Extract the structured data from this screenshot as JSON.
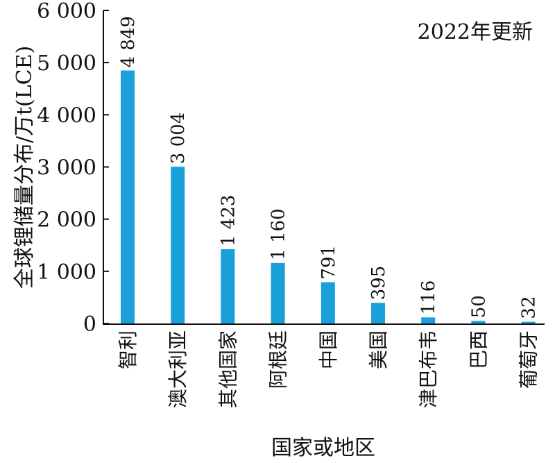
{
  "chart_data": {
    "type": "bar",
    "annotation": "2022年更新",
    "xlabel": "国家或地区",
    "ylabel": "全球锂储量分布/万t(LCE)",
    "ylim": [
      0,
      6000
    ],
    "yticks": [
      0,
      1000,
      2000,
      3000,
      4000,
      5000,
      6000
    ],
    "ytick_labels": [
      "0",
      "1 000",
      "2 000",
      "3 000",
      "4 000",
      "5 000",
      "6 000"
    ],
    "categories": [
      "智利",
      "澳大利亚",
      "其他国家",
      "阿根廷",
      "中国",
      "美国",
      "津巴布韦",
      "巴西",
      "葡萄牙"
    ],
    "values": [
      4849,
      3004,
      1423,
      1160,
      791,
      395,
      116,
      50,
      32
    ],
    "value_labels": [
      "4 849",
      "3 004",
      "1 423",
      "1 160",
      "791",
      "395",
      "116",
      "50",
      "32"
    ],
    "bar_color": "#1aa0d8",
    "grid": false,
    "legend": "none"
  }
}
